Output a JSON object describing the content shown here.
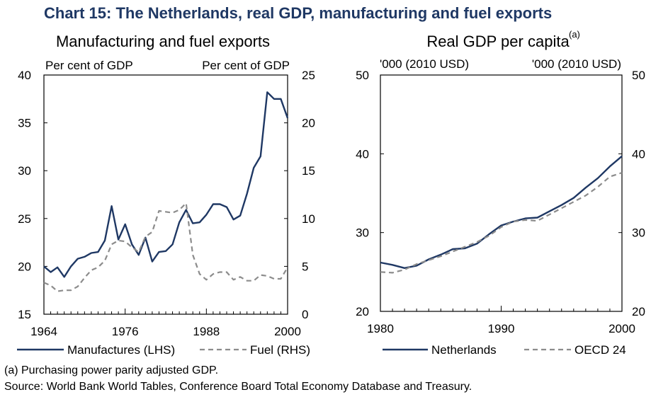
{
  "title": "Chart 15: The Netherlands, real GDP, manufacturing and fuel exports",
  "footnote": "(a)  Purchasing power parity adjusted GDP.",
  "source": "Source: World Bank World Tables, Conference Board Total Economy Database and Treasury.",
  "colors": {
    "title": "#1f3864",
    "series_solid": "#1f3864",
    "series_dashed": "#8c8c8c",
    "axis": "#000000"
  },
  "chart_data": [
    {
      "type": "line",
      "title": "Manufacturing and fuel exports",
      "ylabel_left": "Per cent of GDP",
      "ylabel_right": "Per cent of GDP",
      "xlim": [
        1964,
        2000
      ],
      "ylim_left": [
        15,
        40
      ],
      "ylim_right": [
        0,
        25
      ],
      "x_ticks": [
        "1964",
        "1976",
        "1988",
        "2000"
      ],
      "y_ticks_left": [
        "15",
        "20",
        "25",
        "30",
        "35",
        "40"
      ],
      "y_ticks_right": [
        "0",
        "5",
        "10",
        "15",
        "20",
        "25"
      ],
      "legend_position": "bottom",
      "series": [
        {
          "name": "Manufactures (LHS)",
          "axis": "left",
          "style": "solid",
          "x": [
            1964,
            1965,
            1966,
            1967,
            1968,
            1969,
            1970,
            1971,
            1972,
            1973,
            1974,
            1975,
            1976,
            1977,
            1978,
            1979,
            1980,
            1981,
            1982,
            1983,
            1984,
            1985,
            1986,
            1987,
            1988,
            1989,
            1990,
            1991,
            1992,
            1993,
            1994,
            1995,
            1996,
            1997,
            1998,
            1999,
            2000
          ],
          "values": [
            20.0,
            19.4,
            19.9,
            18.9,
            20.0,
            20.8,
            21.0,
            21.4,
            21.5,
            22.7,
            26.3,
            22.8,
            24.4,
            22.3,
            21.2,
            23.0,
            20.5,
            21.5,
            21.6,
            22.3,
            24.6,
            25.9,
            24.5,
            24.6,
            25.4,
            26.5,
            26.5,
            26.2,
            24.9,
            25.3,
            27.6,
            30.3,
            31.5,
            38.2,
            37.5,
            37.5,
            35.5
          ]
        },
        {
          "name": "Fuel (RHS)",
          "axis": "right",
          "style": "dashed",
          "x": [
            1964,
            1965,
            1966,
            1967,
            1968,
            1969,
            1970,
            1971,
            1972,
            1973,
            1974,
            1975,
            1976,
            1977,
            1978,
            1979,
            1980,
            1981,
            1982,
            1983,
            1984,
            1985,
            1986,
            1987,
            1988,
            1989,
            1990,
            1991,
            1992,
            1993,
            1994,
            1995,
            1996,
            1997,
            1998,
            1999,
            2000
          ],
          "values": [
            3.3,
            3.0,
            2.4,
            2.5,
            2.5,
            2.9,
            3.8,
            4.6,
            4.9,
            5.6,
            7.3,
            7.7,
            7.6,
            7.0,
            6.5,
            8.1,
            8.6,
            10.8,
            10.7,
            10.6,
            10.9,
            11.6,
            6.2,
            4.2,
            3.6,
            4.2,
            4.4,
            4.4,
            3.6,
            3.9,
            3.5,
            3.5,
            4.1,
            4.0,
            3.7,
            3.7,
            4.9
          ]
        }
      ]
    },
    {
      "type": "line",
      "title": "Real GDP per capita",
      "title_sup": "(a)",
      "ylabel_left": "'000 (2010 USD)",
      "ylabel_right": "'000 (2010 USD)",
      "xlim": [
        1980,
        2000
      ],
      "ylim": [
        20,
        50
      ],
      "x_ticks": [
        "1980",
        "1990",
        "2000"
      ],
      "y_ticks": [
        "20",
        "30",
        "40",
        "50"
      ],
      "legend_position": "bottom",
      "series": [
        {
          "name": "Netherlands",
          "style": "solid",
          "x": [
            1980,
            1981,
            1982,
            1983,
            1984,
            1985,
            1986,
            1987,
            1988,
            1989,
            1990,
            1991,
            1992,
            1993,
            1994,
            1995,
            1996,
            1997,
            1998,
            1999,
            2000
          ],
          "values": [
            26.2,
            25.9,
            25.5,
            25.8,
            26.6,
            27.2,
            27.9,
            28.0,
            28.6,
            29.8,
            30.9,
            31.4,
            31.8,
            31.9,
            32.7,
            33.5,
            34.4,
            35.7,
            36.9,
            38.4,
            39.7
          ]
        },
        {
          "name": "OECD 24",
          "style": "dashed",
          "x": [
            1980,
            1981,
            1982,
            1983,
            1984,
            1985,
            1986,
            1987,
            1988,
            1989,
            1990,
            1991,
            1992,
            1993,
            1994,
            1995,
            1996,
            1997,
            1998,
            1999,
            2000
          ],
          "values": [
            25.0,
            24.9,
            25.3,
            26.0,
            26.5,
            27.0,
            27.6,
            28.2,
            28.8,
            29.6,
            30.7,
            31.4,
            31.6,
            31.5,
            32.3,
            33.1,
            33.9,
            34.7,
            35.8,
            37.1,
            37.6
          ]
        }
      ]
    }
  ]
}
